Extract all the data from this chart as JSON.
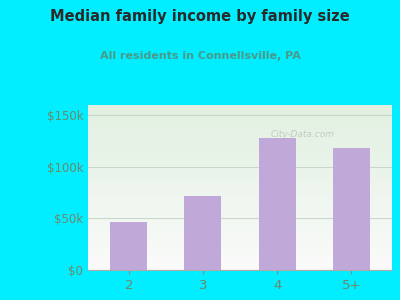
{
  "categories": [
    "2",
    "3",
    "4",
    "5+"
  ],
  "values": [
    47000,
    72000,
    128000,
    118000
  ],
  "bar_color": "#c0a8d8",
  "title": "Median family income by family size",
  "subtitle": "All residents in Connellsville, PA",
  "title_color": "#2a2a2a",
  "subtitle_color": "#4a9a8a",
  "bg_outer": "#00eeff",
  "yticks": [
    0,
    50000,
    100000,
    150000
  ],
  "ylim": [
    0,
    160000
  ],
  "grid_color": "#c8d8c8",
  "tick_label_color": "#6a8a6a",
  "watermark": "City-Data.com"
}
